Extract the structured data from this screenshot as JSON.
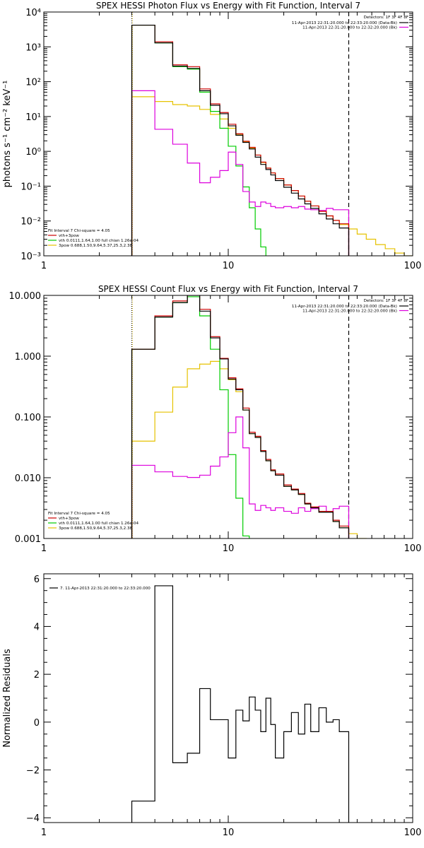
{
  "colors": {
    "data": "#000000",
    "total": "#cc0000",
    "thermal": "#00cc00",
    "powerlaw": "#e6c200",
    "background": "#dd00dd",
    "text": "#000000"
  },
  "chart_data": [
    {
      "type": "line",
      "title": "SPEX HESSI Photon Flux vs Energy with Fit Function, Interval 7",
      "ylabel": "photons s⁻¹ cm⁻² keV⁻¹",
      "xlabel": "",
      "xscale": "log",
      "yscale": "log",
      "xlim": [
        1,
        100
      ],
      "ylim": [
        0.001,
        10000
      ],
      "xticks": [
        "1",
        "10",
        "100"
      ],
      "yticks": [
        "10⁻³",
        "10⁻²",
        "10⁻¹",
        "10⁰",
        "10¹",
        "10²",
        "10³",
        "10⁴"
      ],
      "fit_range": [
        3,
        45
      ],
      "legend_top": {
        "header": "Detectors: 1F 3F 4F 8F",
        "entries": [
          "11-Apr-2013 22:31:20.000 to 22:33:20.000 (Data-Bk)",
          "11-Apr-2013 22:31:20.000 to 22:32:20.000 (Bk)"
        ]
      },
      "legend_bottom": {
        "header": "Fit Interval 7    Chi-square = 4.05",
        "entries": [
          "vth+3pow",
          "vth 0.0111,1.64,1.00  full chian 1.26e-04",
          "3pow 0.688,1.50,9.64,5.37,25.3,2.38"
        ]
      },
      "edges": [
        3,
        4,
        5,
        6,
        7,
        8,
        9,
        10,
        11,
        12,
        13,
        14,
        15,
        16,
        17,
        18,
        20,
        22,
        24,
        26,
        28,
        31,
        34,
        37,
        40,
        45,
        50,
        56,
        63,
        71,
        80,
        90,
        100
      ],
      "series": [
        {
          "name": "Data-Bk",
          "values": [
            4200,
            1300,
            280,
            240,
            55,
            21,
            12,
            5.4,
            2.9,
            1.8,
            1.17,
            0.68,
            0.42,
            0.3,
            0.21,
            0.145,
            0.093,
            0.063,
            0.043,
            0.031,
            0.023,
            0.016,
            0.0114,
            0.0083,
            0.0063
          ]
        },
        {
          "name": "vth+3pow",
          "values": [
            4200,
            1400,
            305,
            270,
            62,
            23,
            13,
            6.0,
            3.2,
            1.95,
            1.3,
            0.78,
            0.49,
            0.33,
            0.24,
            0.165,
            0.108,
            0.075,
            0.052,
            0.037,
            0.027,
            0.019,
            0.014,
            0.0104,
            0.0083
          ]
        },
        {
          "name": "vth",
          "values": [
            4200,
            1300,
            270,
            230,
            50,
            14,
            4.6,
            1.4,
            0.38,
            0.095,
            0.024,
            0.0059,
            0.0018
          ]
        },
        {
          "name": "3pow",
          "values": [
            37,
            27,
            22,
            20,
            16,
            11.5,
            8.5,
            4.6,
            3.1,
            1.9,
            1.25,
            0.78,
            0.48,
            0.33,
            0.24,
            0.165,
            0.108,
            0.075,
            0.052,
            0.037,
            0.027,
            0.019,
            0.014,
            0.0104,
            0.0079,
            0.0059,
            0.0042,
            0.003,
            0.0021,
            0.0016,
            0.0012,
            0.001
          ]
        },
        {
          "name": "Bk",
          "values": [
            55,
            4.3,
            1.6,
            0.46,
            0.125,
            0.18,
            0.28,
            0.95,
            0.42,
            0.07,
            0.035,
            0.026,
            0.035,
            0.032,
            0.026,
            0.024,
            0.026,
            0.024,
            0.026,
            0.022,
            0.021,
            0.02,
            0.023,
            0.021,
            0.021
          ]
        }
      ]
    },
    {
      "type": "line",
      "title": "SPEX HESSI Count Flux vs Energy with Fit Function, Interval 7",
      "ylabel": "",
      "xlabel": "",
      "xscale": "log",
      "yscale": "log",
      "xlim": [
        1,
        100
      ],
      "ylim": [
        0.001,
        10
      ],
      "xticks": [
        "1",
        "10",
        "100"
      ],
      "yticks": [
        "0.001",
        "0.010",
        "0.100",
        "1.000",
        "10.000"
      ],
      "fit_range": [
        3,
        45
      ],
      "legend_top": {
        "header": "Detectors: 1F 3F 4F 8F",
        "entries": [
          "11-Apr-2013 22:31:20.000 to 22:33:20.000 (Data-Bk)",
          "11-Apr-2013 22:31:20.000 to 22:32:20.000 (Bk)"
        ]
      },
      "legend_bottom": {
        "header": "Fit Interval 7    Chi-square = 4.05",
        "entries": [
          "vth+3pow",
          "vth 0.0111,1.64,1.00  full chian 1.26e-04",
          "3pow 0.688,1.50,9.64,5.37,25.3,2.38"
        ]
      },
      "edges": [
        3,
        4,
        5,
        6,
        7,
        8,
        9,
        10,
        11,
        12,
        13,
        14,
        15,
        16,
        17,
        18,
        20,
        22,
        24,
        26,
        28,
        31,
        34,
        37,
        40,
        45,
        50,
        56,
        63,
        71,
        80,
        90,
        100
      ],
      "series": [
        {
          "name": "Data-Bk",
          "values": [
            1.3,
            4.4,
            7.6,
            10.0,
            5.5,
            2.0,
            0.9,
            0.42,
            0.28,
            0.13,
            0.053,
            0.046,
            0.027,
            0.019,
            0.013,
            0.011,
            0.0072,
            0.0063,
            0.0053,
            0.0037,
            0.0032,
            0.0027,
            0.0027,
            0.0019,
            0.0015
          ]
        },
        {
          "name": "vth+3pow",
          "values": [
            1.3,
            4.6,
            8.1,
            10.4,
            5.9,
            2.1,
            0.92,
            0.44,
            0.29,
            0.14,
            0.056,
            0.048,
            0.028,
            0.02,
            0.0135,
            0.0115,
            0.0076,
            0.0065,
            0.0055,
            0.0038,
            0.0033,
            0.0028,
            0.0028,
            0.002,
            0.0016
          ]
        },
        {
          "name": "vth",
          "values": [
            1.3,
            4.4,
            7.6,
            9.5,
            4.6,
            1.3,
            0.28,
            0.024,
            0.0046,
            0.0011,
            0.0006
          ]
        },
        {
          "name": "3pow",
          "values": [
            0.04,
            0.12,
            0.31,
            0.62,
            0.74,
            0.82,
            0.62,
            0.41,
            0.26,
            0.13,
            0.053,
            0.046,
            0.027,
            0.019,
            0.013,
            0.011,
            0.0072,
            0.0063,
            0.0053,
            0.0037,
            0.0032,
            0.0027,
            0.0027,
            0.0019,
            0.0015,
            0.0012,
            0.001,
            0.0009,
            0.0008
          ]
        },
        {
          "name": "Bk",
          "values": [
            0.016,
            0.0125,
            0.0105,
            0.0101,
            0.011,
            0.0155,
            0.022,
            0.055,
            0.1,
            0.031,
            0.0037,
            0.0029,
            0.0035,
            0.0032,
            0.0029,
            0.0032,
            0.0028,
            0.0026,
            0.0032,
            0.0028,
            0.0031,
            0.0034,
            0.0028,
            0.0031,
            0.0034
          ]
        }
      ]
    },
    {
      "type": "line",
      "title": "",
      "ylabel": "Normalized Residuals",
      "xlabel": "",
      "xscale": "log",
      "yscale": "linear",
      "xlim": [
        1,
        100
      ],
      "ylim": [
        -4.2,
        6.2
      ],
      "xticks": [
        "1",
        "10",
        "100"
      ],
      "yticks": [
        "−4",
        "−2",
        "0",
        "2",
        "4",
        "6"
      ],
      "legend": "7. 11-Apr-2013 22:31:20.000 to 22:33:20.000",
      "edges": [
        3,
        4,
        5,
        6,
        7,
        8,
        9,
        10,
        11,
        12,
        13,
        14,
        15,
        16,
        17,
        18,
        20,
        22,
        24,
        26,
        28,
        31,
        34,
        37,
        40,
        45
      ],
      "series": [
        {
          "name": "Residuals",
          "values": [
            -3.3,
            5.7,
            -1.7,
            -1.3,
            1.4,
            0.1,
            0.1,
            -1.5,
            0.5,
            0.05,
            1.05,
            0.5,
            -0.4,
            1.0,
            -0.1,
            -1.5,
            -0.4,
            0.4,
            -0.5,
            0.75,
            -0.4,
            0.6,
            0.0,
            0.1,
            -0.4
          ]
        }
      ]
    }
  ]
}
